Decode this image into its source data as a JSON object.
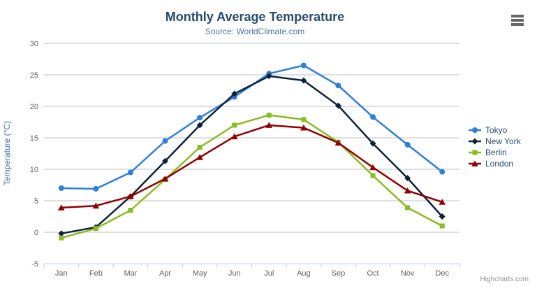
{
  "chart_data": {
    "type": "line",
    "title": "Monthly Average Temperature",
    "subtitle": "Source: WorldClimate.com",
    "categories": [
      "Jan",
      "Feb",
      "Mar",
      "Apr",
      "May",
      "Jun",
      "Jul",
      "Aug",
      "Sep",
      "Oct",
      "Nov",
      "Dec"
    ],
    "xlabel": "",
    "ylabel": "Temperature (°C)",
    "ylim": [
      -5,
      30
    ],
    "ytick_step": 5,
    "yticks": [
      -5,
      0,
      5,
      10,
      15,
      20,
      25,
      30
    ],
    "grid": true,
    "legend_position": "right",
    "series": [
      {
        "name": "Tokyo",
        "color": "#2f7ed8",
        "marker": "circle",
        "values": [
          7.0,
          6.9,
          9.5,
          14.5,
          18.2,
          21.5,
          25.2,
          26.5,
          23.3,
          18.3,
          13.9,
          9.6
        ]
      },
      {
        "name": "New York",
        "color": "#0d233a",
        "marker": "diamond",
        "values": [
          -0.2,
          0.8,
          5.7,
          11.3,
          17.0,
          22.0,
          24.8,
          24.1,
          20.1,
          14.1,
          8.6,
          2.5
        ]
      },
      {
        "name": "Berlin",
        "color": "#8bbc21",
        "marker": "square",
        "values": [
          -0.9,
          0.6,
          3.5,
          8.4,
          13.5,
          17.0,
          18.6,
          17.9,
          14.3,
          9.0,
          3.9,
          1.0
        ]
      },
      {
        "name": "London",
        "color": "#910000",
        "marker": "triangle",
        "values": [
          3.9,
          4.2,
          5.7,
          8.5,
          11.9,
          15.2,
          17.0,
          16.6,
          14.2,
          10.3,
          6.6,
          4.8
        ]
      }
    ]
  },
  "credits": "Highcharts.com",
  "icons": {
    "context_menu": "hamburger-icon"
  },
  "colors": {
    "title": "#274b6d",
    "subtitle": "#4d759e",
    "axis_label": "#606060",
    "yaxis_title": "#4572a7",
    "gridline": "#c0c0c0",
    "axis_line": "#c0d0e0",
    "legend_text": "#274b6d",
    "credits": "#909090"
  }
}
